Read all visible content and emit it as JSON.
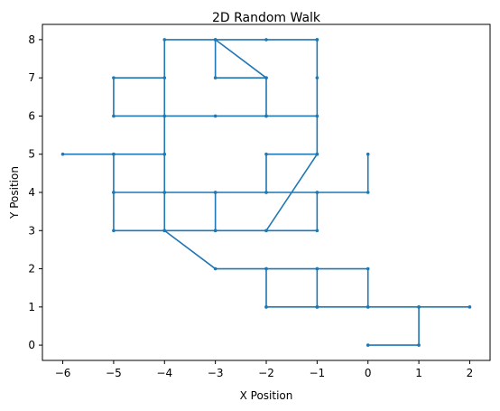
{
  "chart_data": {
    "type": "line",
    "title": "2D Random Walk",
    "xlabel": "X Position",
    "ylabel": "Y Position",
    "xlim": [
      -6.4,
      2.4
    ],
    "ylim": [
      -0.4,
      8.4
    ],
    "x_ticks": [
      -6,
      -5,
      -4,
      -3,
      -2,
      -1,
      0,
      1,
      2
    ],
    "y_ticks": [
      0,
      1,
      2,
      3,
      4,
      5,
      6,
      7,
      8
    ],
    "grid": false,
    "line_color": "#1f77b4",
    "marker": "dot",
    "x": [
      0,
      1,
      1,
      2,
      1,
      0,
      -1,
      -2,
      -1,
      0,
      0,
      -1,
      -2,
      -2,
      -1,
      -1,
      -2,
      -3,
      -4,
      -5,
      -5,
      -4,
      -3,
      -3,
      -2,
      -1,
      -1,
      -2,
      -2,
      -1,
      -1,
      -2,
      -3,
      -3,
      -2,
      -2,
      -1,
      -1,
      -1,
      -1,
      -2,
      -3,
      -4,
      -4,
      -3,
      -2,
      -2,
      -3,
      -4,
      -5,
      -5,
      -4,
      -4,
      -5,
      -6,
      -5,
      -5,
      -4,
      -3,
      -2,
      -1,
      0,
      0
    ],
    "y": [
      0,
      0,
      1,
      1,
      1,
      1,
      1,
      1,
      1,
      1,
      2,
      2,
      2,
      1,
      1,
      2,
      2,
      2,
      3,
      3,
      4,
      4,
      4,
      3,
      3,
      3,
      4,
      4,
      5,
      5,
      8,
      8,
      8,
      7,
      7,
      6,
      6,
      7,
      8,
      5,
      3,
      3,
      3,
      8,
      8,
      7,
      6,
      6,
      6,
      6,
      7,
      7,
      5,
      5,
      5,
      5,
      4,
      4,
      4,
      4,
      4,
      4,
      5
    ]
  }
}
